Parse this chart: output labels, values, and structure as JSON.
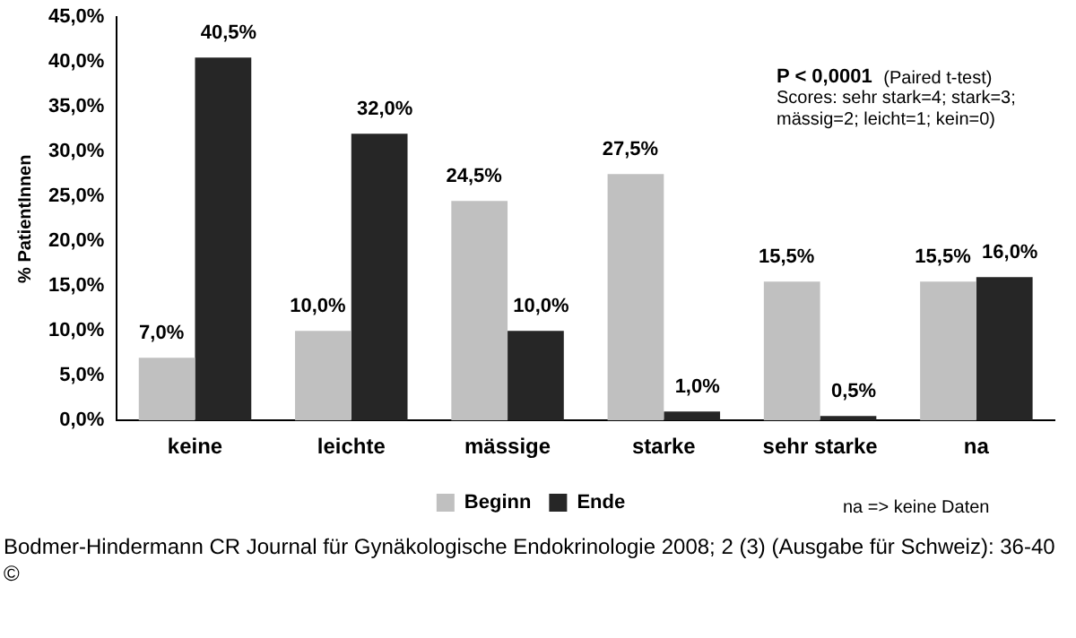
{
  "chart_data": {
    "type": "bar",
    "ylabel": "% PatientInnen",
    "categories": [
      "keine",
      "leichte",
      "mässige",
      "starke",
      "sehr starke",
      "na"
    ],
    "series": [
      {
        "name": "Beginn",
        "color": "#c0c0c0",
        "values": [
          7,
          10,
          24.5,
          27.5,
          15.5,
          15.5
        ],
        "value_labels": [
          "7,0%",
          "10,0%",
          "24,5%",
          "27,5%",
          "15,5%",
          "15,5%"
        ]
      },
      {
        "name": "Ende",
        "color": "#262626",
        "values": [
          40.5,
          32,
          10,
          1,
          0.5,
          16
        ],
        "value_labels": [
          "40,5%",
          "32,0%",
          "10,0%",
          "1,0%",
          "0,5%",
          "16,0%"
        ]
      }
    ],
    "ylim": [
      0,
      45
    ],
    "yticks": [
      {
        "value": 0,
        "label": "0,0%"
      },
      {
        "value": 5,
        "label": "5,0%"
      },
      {
        "value": 10,
        "label": "10,0%"
      },
      {
        "value": 15,
        "label": "15,0%"
      },
      {
        "value": 20,
        "label": "20,0%"
      },
      {
        "value": 25,
        "label": "25,0%"
      },
      {
        "value": 30,
        "label": "30,0%"
      },
      {
        "value": 35,
        "label": "35,0%"
      },
      {
        "value": 40,
        "label": "40,0%"
      },
      {
        "value": 45,
        "label": "45,0%"
      }
    ],
    "grid": false,
    "legend": "bottom",
    "annotations": [
      "P < 0,0001  (Paired t-test)",
      "Scores: sehr stark=4; stark=3;",
      "mässig=2; leicht=1; kein=0)",
      "na => keine Daten",
      "Bodmer-Hindermann CR Journal für Gynäkologische Endokrinologie 2008; 2 (3) (Ausgabe für Schweiz): 36-40",
      "©"
    ]
  }
}
